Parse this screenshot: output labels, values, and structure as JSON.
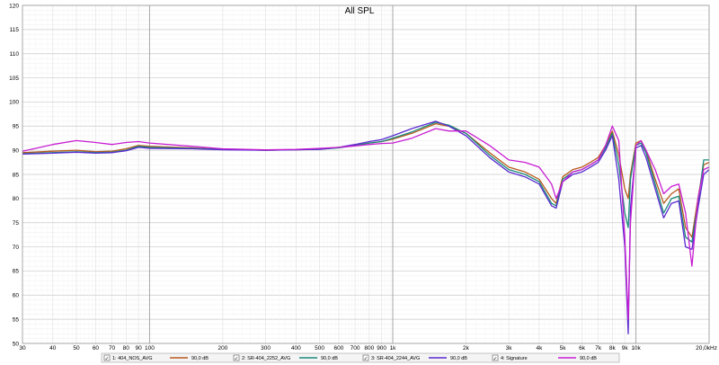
{
  "chart_data": {
    "type": "line",
    "title": "All SPL",
    "xlabel": "",
    "ylabel": "",
    "x_scale": "log",
    "xlim": [
      30,
      20000
    ],
    "ylim": [
      50,
      120
    ],
    "grid": true,
    "legend_placement": "bottom",
    "x_tick_labels": [
      {
        "v": 30,
        "t": "30"
      },
      {
        "v": 40,
        "t": "40"
      },
      {
        "v": 50,
        "t": "50"
      },
      {
        "v": 60,
        "t": "60"
      },
      {
        "v": 70,
        "t": "70"
      },
      {
        "v": 80,
        "t": "80"
      },
      {
        "v": 90,
        "t": "90"
      },
      {
        "v": 100,
        "t": "100"
      },
      {
        "v": 200,
        "t": "200"
      },
      {
        "v": 300,
        "t": "300"
      },
      {
        "v": 400,
        "t": "400"
      },
      {
        "v": 500,
        "t": "500"
      },
      {
        "v": 600,
        "t": "600"
      },
      {
        "v": 700,
        "t": "700"
      },
      {
        "v": 800,
        "t": "800"
      },
      {
        "v": 900,
        "t": "900"
      },
      {
        "v": 1000,
        "t": "1k"
      },
      {
        "v": 2000,
        "t": "2k"
      },
      {
        "v": 3000,
        "t": "3k"
      },
      {
        "v": 4000,
        "t": "4k"
      },
      {
        "v": 5000,
        "t": "5k"
      },
      {
        "v": 6000,
        "t": "6k"
      },
      {
        "v": 7000,
        "t": "7k"
      },
      {
        "v": 8000,
        "t": "8k"
      },
      {
        "v": 9000,
        "t": "9k"
      },
      {
        "v": 10000,
        "t": "10k"
      },
      {
        "v": 20000,
        "t": "20,0kHz"
      }
    ],
    "y_tick_labels": [
      "120",
      "115",
      "110",
      "105",
      "100",
      "95",
      "90",
      "85",
      "80",
      "75",
      "70",
      "65",
      "60",
      "55",
      "50"
    ],
    "y_ticks": [
      120,
      115,
      110,
      105,
      100,
      95,
      90,
      85,
      80,
      75,
      70,
      65,
      60,
      55,
      50
    ],
    "series": [
      {
        "name": "1: 404_NOS_AVG",
        "level": "90,0 dB",
        "color": "#b85a1e",
        "x": [
          30,
          40,
          50,
          60,
          70,
          80,
          90,
          100,
          150,
          200,
          300,
          400,
          500,
          600,
          700,
          800,
          900,
          1000,
          1200,
          1500,
          1700,
          2000,
          2500,
          3000,
          3500,
          4000,
          4500,
          4700,
          5000,
          5500,
          6000,
          6500,
          7000,
          7500,
          8000,
          8500,
          9000,
          9300,
          9500,
          10000,
          10500,
          11000,
          12000,
          13000,
          14000,
          15000,
          16000,
          17000,
          18000,
          19000,
          20000
        ],
        "y": [
          89.5,
          89.8,
          90.0,
          89.7,
          89.8,
          90.3,
          91.0,
          90.8,
          90.5,
          90.2,
          90.0,
          90.1,
          90.3,
          90.6,
          91.0,
          91.5,
          91.8,
          92.3,
          93.5,
          95.5,
          95.0,
          93.5,
          89.5,
          86.5,
          85.5,
          84.0,
          80.0,
          79.0,
          84.5,
          86.0,
          86.5,
          87.5,
          88.5,
          91.0,
          94.0,
          89.0,
          82.0,
          80.0,
          85.0,
          91.5,
          92.0,
          90.0,
          84.0,
          79.0,
          81.0,
          82.0,
          74.0,
          72.0,
          80.0,
          87.0,
          87.5
        ]
      },
      {
        "name": "2: SR-404_2252_AVG",
        "level": "90,0 dB",
        "color": "#1a8a7a",
        "x": [
          30,
          40,
          50,
          60,
          70,
          80,
          90,
          100,
          150,
          200,
          300,
          400,
          500,
          600,
          700,
          800,
          900,
          1000,
          1200,
          1500,
          1700,
          2000,
          2500,
          3000,
          3500,
          4000,
          4500,
          4700,
          5000,
          5500,
          6000,
          6500,
          7000,
          7500,
          8000,
          8500,
          9000,
          9300,
          9500,
          10000,
          10500,
          11000,
          12000,
          13000,
          14000,
          15000,
          16000,
          17000,
          18000,
          19000,
          20000
        ],
        "y": [
          89.3,
          89.5,
          89.7,
          89.5,
          89.6,
          90.0,
          90.8,
          90.6,
          90.4,
          90.2,
          90.0,
          90.1,
          90.2,
          90.5,
          91.0,
          91.5,
          91.8,
          92.5,
          93.8,
          95.8,
          95.2,
          93.5,
          89.0,
          86.0,
          85.0,
          83.5,
          79.0,
          78.5,
          84.0,
          85.5,
          86.0,
          87.0,
          88.0,
          90.5,
          93.5,
          87.0,
          77.0,
          74.0,
          84.0,
          91.0,
          91.5,
          89.5,
          83.0,
          77.0,
          80.0,
          80.5,
          72.0,
          71.0,
          79.0,
          88.0,
          88.0
        ]
      },
      {
        "name": "3: SR-404_2244_AVG",
        "level": "90,0 dB",
        "color": "#5a2ad0",
        "x": [
          30,
          40,
          50,
          60,
          70,
          80,
          90,
          100,
          150,
          200,
          300,
          400,
          500,
          600,
          700,
          800,
          900,
          1000,
          1200,
          1500,
          1700,
          2000,
          2500,
          3000,
          3500,
          4000,
          4500,
          4700,
          5000,
          5500,
          6000,
          6500,
          7000,
          7500,
          8000,
          8500,
          9000,
          9300,
          9500,
          10000,
          10500,
          11000,
          12000,
          13000,
          14000,
          15000,
          16000,
          17000,
          18000,
          19000,
          20000
        ],
        "y": [
          89.2,
          89.4,
          89.6,
          89.4,
          89.5,
          89.9,
          90.6,
          90.4,
          90.3,
          90.1,
          90.0,
          90.1,
          90.2,
          90.6,
          91.2,
          91.8,
          92.2,
          93.0,
          94.5,
          96.0,
          95.0,
          93.0,
          88.5,
          85.5,
          84.5,
          83.0,
          78.5,
          78.0,
          83.5,
          85.0,
          85.5,
          86.5,
          87.5,
          90.0,
          93.0,
          84.0,
          70.0,
          52.0,
          78.0,
          90.5,
          91.0,
          88.5,
          82.0,
          76.0,
          79.0,
          79.5,
          70.0,
          69.5,
          78.0,
          85.0,
          86.0
        ]
      },
      {
        "name": "4: Signature",
        "level": "90,0 dB",
        "color": "#c81ed2",
        "x": [
          30,
          40,
          50,
          60,
          70,
          80,
          90,
          100,
          150,
          200,
          300,
          400,
          500,
          600,
          700,
          800,
          900,
          1000,
          1200,
          1500,
          1700,
          2000,
          2500,
          3000,
          3500,
          4000,
          4500,
          4700,
          5000,
          5500,
          6000,
          6500,
          7000,
          7500,
          8000,
          8500,
          9000,
          9300,
          9500,
          10000,
          10500,
          11000,
          12000,
          13000,
          14000,
          15000,
          16000,
          17000,
          18000,
          19000,
          20000
        ],
        "y": [
          89.8,
          91.2,
          92.0,
          91.6,
          91.2,
          91.6,
          91.8,
          91.5,
          90.8,
          90.3,
          90.1,
          90.2,
          90.4,
          90.6,
          90.9,
          91.2,
          91.4,
          91.5,
          92.5,
          94.5,
          94.0,
          94.0,
          91.0,
          88.0,
          87.5,
          86.5,
          83.0,
          80.0,
          83.5,
          85.5,
          86.0,
          87.0,
          88.0,
          91.0,
          95.0,
          92.0,
          72.0,
          55.0,
          75.0,
          91.0,
          92.0,
          90.0,
          86.0,
          81.0,
          82.5,
          83.0,
          77.0,
          66.0,
          80.0,
          86.0,
          86.5
        ]
      }
    ]
  }
}
